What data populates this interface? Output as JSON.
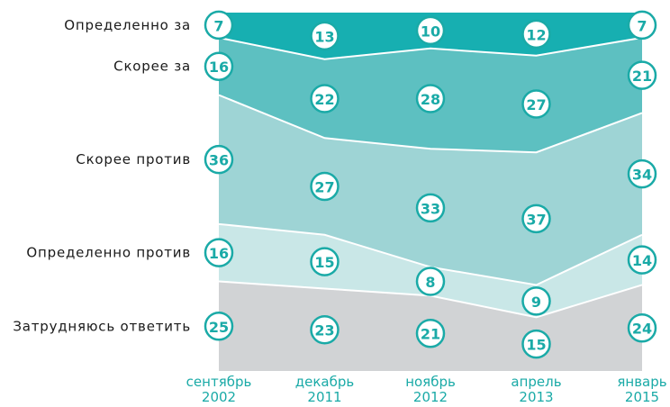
{
  "chart_data": {
    "type": "stacked_area",
    "categories": [
      "сентябрь\n2002",
      "декабрь\n2011",
      "ноябрь\n2012",
      "апрель\n2013",
      "январь\n2015"
    ],
    "series": [
      {
        "name": "Затрудняюсь ответить",
        "color": "#d1d3d5",
        "values": [
          25,
          23,
          21,
          15,
          24
        ]
      },
      {
        "name": "Определенно против",
        "color": "#c9e7e7",
        "values": [
          16,
          15,
          8,
          9,
          14
        ]
      },
      {
        "name": "Скорее против",
        "color": "#9ed4d5",
        "values": [
          36,
          27,
          33,
          37,
          34
        ]
      },
      {
        "name": "Скорее за",
        "color": "#5dc0c1",
        "values": [
          16,
          22,
          28,
          27,
          21
        ]
      },
      {
        "name": "Определенно за",
        "color": "#17afb1",
        "values": [
          7,
          13,
          10,
          12,
          7
        ]
      }
    ],
    "label_color": "#1aaaa7"
  }
}
